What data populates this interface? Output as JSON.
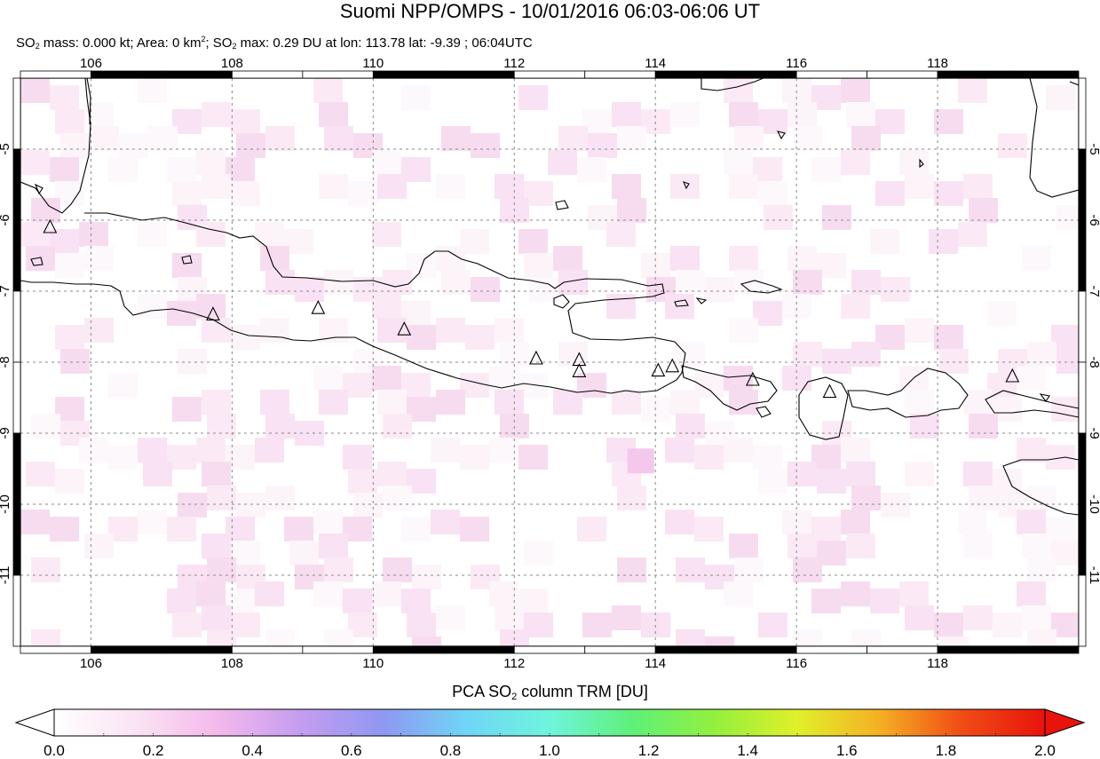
{
  "title": "Suomi NPP/OMPS - 10/01/2016 06:03-06:06 UT",
  "subtitle": {
    "mass_label": "SO",
    "mass_sub": "2",
    "mass_text": " mass: 0.000 kt; Area: 0 km",
    "area_sup": "2",
    "max_label": "; SO",
    "max_sub": "2",
    "max_text": " max: 0.29 DU at lon: 113.78 lat: -9.39 ; 06:04UTC"
  },
  "map": {
    "lon_range": [
      105,
      120
    ],
    "lat_range": [
      -12,
      -4
    ],
    "lon_ticks": [
      "106",
      "108",
      "110",
      "112",
      "114",
      "116",
      "118"
    ],
    "lat_ticks": [
      "-5",
      "-6",
      "-7",
      "-8",
      "-9",
      "-10",
      "-11"
    ],
    "grid": true,
    "volcanoes": [
      {
        "lon": 105.42,
        "lat": -6.1
      },
      {
        "lon": 107.73,
        "lat": -7.33
      },
      {
        "lon": 109.22,
        "lat": -7.24
      },
      {
        "lon": 110.44,
        "lat": -7.54
      },
      {
        "lon": 112.31,
        "lat": -7.95
      },
      {
        "lon": 112.92,
        "lat": -7.97
      },
      {
        "lon": 112.92,
        "lat": -8.13
      },
      {
        "lon": 114.04,
        "lat": -8.12
      },
      {
        "lon": 114.24,
        "lat": -8.06
      },
      {
        "lon": 115.38,
        "lat": -8.25
      },
      {
        "lon": 116.47,
        "lat": -8.42
      },
      {
        "lon": 119.06,
        "lat": -8.2
      }
    ],
    "max_location": {
      "lon": 113.78,
      "lat": -9.39,
      "value": 0.29
    }
  },
  "colorbar": {
    "title_prefix": "PCA SO",
    "title_sub": "2",
    "title_suffix": " column TRM [DU]",
    "range": [
      0.0,
      2.0
    ],
    "ticks": [
      "0.0",
      "0.2",
      "0.4",
      "0.6",
      "0.8",
      "1.0",
      "1.2",
      "1.4",
      "1.6",
      "1.8",
      "2.0"
    ],
    "colors": [
      "#ffffff",
      "#fbe3f3",
      "#f3b8ec",
      "#c49cf0",
      "#8f98f2",
      "#6fd6f6",
      "#6ff4dd",
      "#5ff07a",
      "#93f03e",
      "#e0f02a",
      "#f5b023",
      "#f04b15",
      "#e8140c"
    ]
  }
}
